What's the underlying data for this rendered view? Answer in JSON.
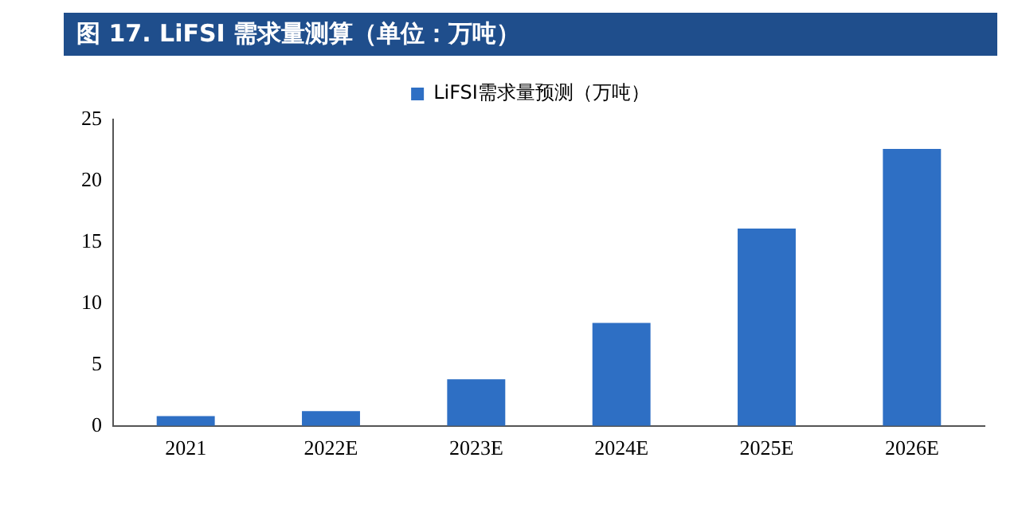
{
  "chart_data": {
    "type": "bar",
    "title": "图 17. LiFSI 需求量测算（单位：万吨）",
    "categories": [
      "2021",
      "2022E",
      "2023E",
      "2024E",
      "2025E",
      "2026E"
    ],
    "series": [
      {
        "name": "LiFSI需求量预测（万吨）",
        "color": "#2e6fc4",
        "values": [
          0.8,
          1.2,
          3.8,
          8.4,
          16.1,
          22.6
        ]
      }
    ],
    "ylim": [
      0,
      25
    ],
    "yticks": [
      0,
      5,
      10,
      15,
      20,
      25
    ],
    "grid": false,
    "legend": "top"
  }
}
